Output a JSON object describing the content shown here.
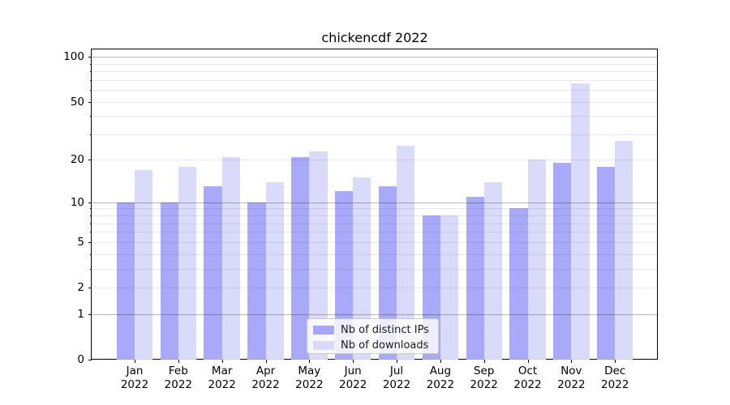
{
  "chart_data": {
    "type": "bar",
    "title": "chickencdf 2022",
    "categories": [
      "Jan",
      "Feb",
      "Mar",
      "Apr",
      "May",
      "Jun",
      "Jul",
      "Aug",
      "Sep",
      "Oct",
      "Nov",
      "Dec"
    ],
    "category_year": "2022",
    "series": [
      {
        "name": "Nb of distinct IPs",
        "color": "#a6a6fa",
        "values": [
          10,
          10,
          13,
          10,
          21,
          12,
          13,
          8,
          11,
          9,
          19,
          18
        ]
      },
      {
        "name": "Nb of downloads",
        "color": "#d9d9fa",
        "values": [
          17,
          18,
          21,
          14,
          23,
          15,
          25,
          8,
          14,
          20,
          66,
          27
        ]
      }
    ],
    "yscale": "log1p",
    "ylim": [
      0,
      112
    ],
    "yticks": [
      0,
      1,
      2,
      5,
      10,
      20,
      50,
      100
    ],
    "major_gridlines": [
      1,
      10,
      100
    ],
    "minor_gridlines": [
      2,
      3,
      4,
      5,
      6,
      7,
      8,
      9,
      20,
      30,
      40,
      50,
      60,
      70,
      80,
      90
    ],
    "grid": "on",
    "legend_position": "lower center"
  }
}
